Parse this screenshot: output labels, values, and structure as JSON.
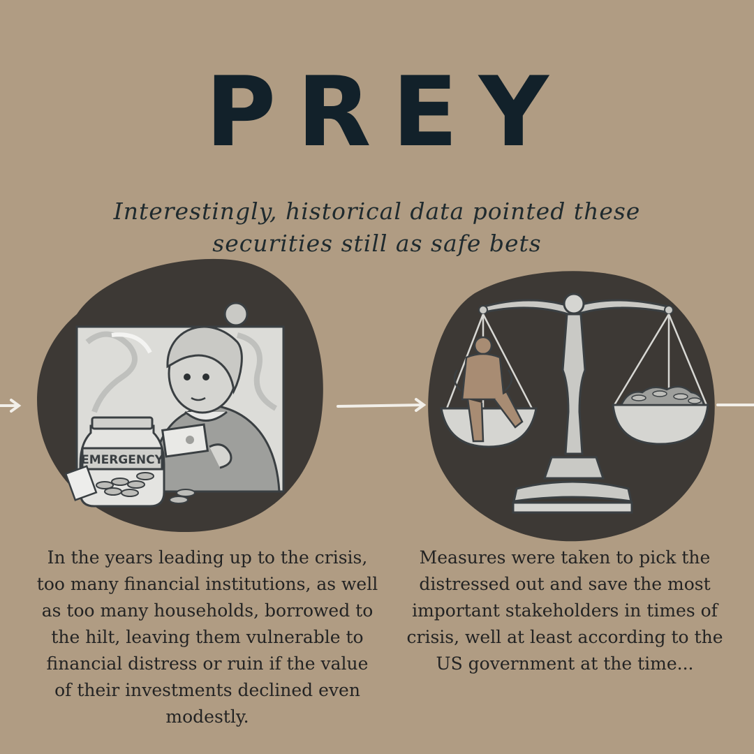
{
  "title": "PREY",
  "subtitle_line1": "Interestingly, historical data pointed these",
  "subtitle_line2": "securities still as safe bets",
  "left_illustration": {
    "jar_label": "EMERGENCY"
  },
  "left_text": "In the years leading up to the crisis, too many financial institutions, as well as too many households, borrowed to the hilt, leaving them vulnerable to financial distress or ruin if the value of their investments declined even modestly.",
  "right_text": "Measures were taken to pick the distressed out and save the most important stakeholders in times of crisis, well at least according to the US government at the time...",
  "colors": {
    "background": "#b09c83",
    "blob": "#3d3935",
    "title": "#12212a",
    "arrow": "#f2efe9"
  }
}
